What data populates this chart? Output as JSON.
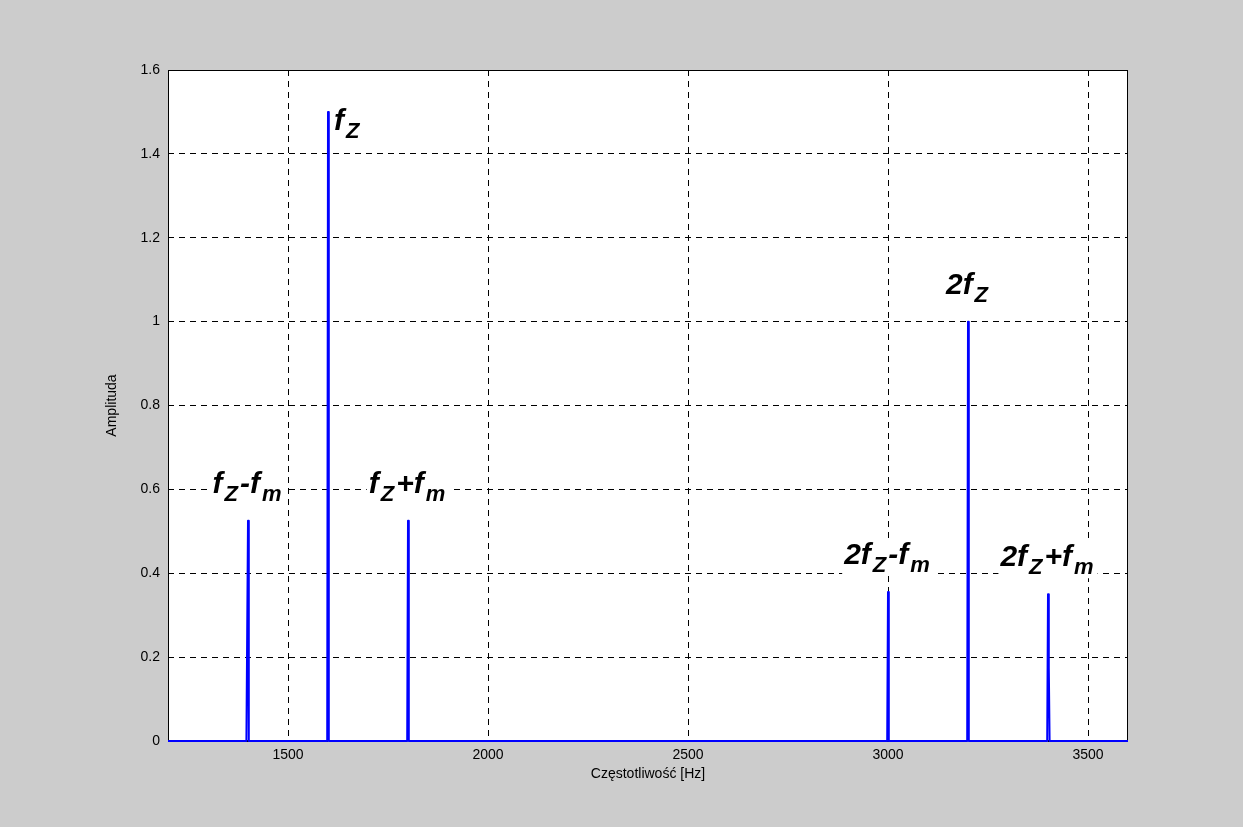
{
  "chart_data": {
    "type": "line",
    "xlabel": "Częstotliwość [Hz]",
    "ylabel": "Amplituda",
    "x": [
      1200,
      1396,
      1398,
      1400,
      1402,
      1598,
      1600,
      1602,
      1798,
      1800,
      1802,
      2998,
      3000,
      3002,
      3198,
      3200,
      3202,
      3398,
      3400,
      3402,
      3404,
      3600
    ],
    "series": [
      {
        "color": "#0000ff",
        "values": [
          0,
          0,
          0.26,
          0.525,
          0,
          0,
          1.5,
          0,
          0,
          0.525,
          0,
          0,
          0.355,
          0,
          0,
          1.0,
          0,
          0,
          0.35,
          0.175,
          0,
          0
        ]
      }
    ],
    "xlim": [
      1200,
      3600
    ],
    "xticks": [
      1500,
      2000,
      2500,
      3000,
      3500
    ],
    "ylim": [
      0,
      1.6
    ],
    "yticks": [
      0,
      0.2,
      0.4,
      0.6,
      0.8,
      1,
      1.2,
      1.4,
      1.6
    ],
    "grid": true,
    "legend": false,
    "marker": "none",
    "line_style": "solid",
    "annotations": [
      {
        "text": "f$_{Z}$-f$_{m}$",
        "x": 1400,
        "y": 0.525
      },
      {
        "text": "f$_{Z}$",
        "x": 1600,
        "y": 1.5
      },
      {
        "text": "f$_{Z}$+f$_{m}$",
        "x": 1800,
        "y": 0.525
      },
      {
        "text": "2f$_{Z}$-f$_{m}$",
        "x": 3000,
        "y": 0.355
      },
      {
        "text": "2f$_{Z}$",
        "x": 3200,
        "y": 1.0
      },
      {
        "text": "2f$_{Z}$+f$_{m}$",
        "x": 3400,
        "y": 0.35
      }
    ]
  }
}
